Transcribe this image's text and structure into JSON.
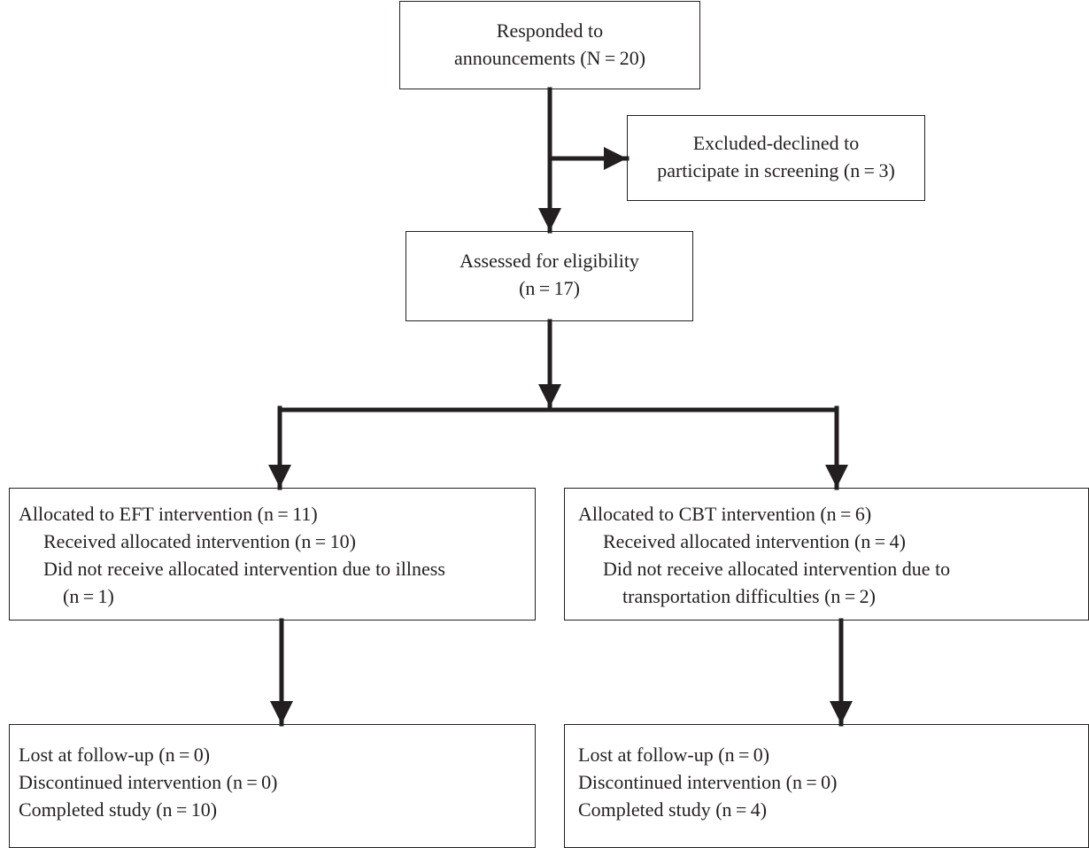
{
  "nodes": {
    "responded": {
      "lines": [
        "Responded to",
        "announcements (N = 20)"
      ]
    },
    "excluded": {
      "lines": [
        "Excluded-declined to",
        "participate in screening (n = 3)"
      ]
    },
    "assessed": {
      "lines": [
        "Assessed for eligibility",
        "(n = 17)"
      ]
    },
    "eft": {
      "line1": "Allocated to EFT intervention (n = 11)",
      "line2": "Received allocated intervention (n = 10)",
      "line3": "Did not receive allocated intervention due to illness",
      "line4": "(n = 1)"
    },
    "cbt": {
      "line1": "Allocated to CBT intervention (n = 6)",
      "line2": "Received allocated intervention  (n = 4)",
      "line3": "Did not receive allocated intervention due to",
      "line4": "transportation difficulties (n = 2)"
    },
    "eft_followup": {
      "lines": [
        "Lost at follow-up (n = 0)",
        "Discontinued intervention (n = 0)",
        "Completed study (n = 10)"
      ]
    },
    "cbt_followup": {
      "lines": [
        "Lost at follow-up (n = 0)",
        "Discontinued intervention (n = 0)",
        "Completed study (n = 4)"
      ]
    }
  },
  "colors": {
    "stroke": "#231f20",
    "text": "#231f20"
  }
}
